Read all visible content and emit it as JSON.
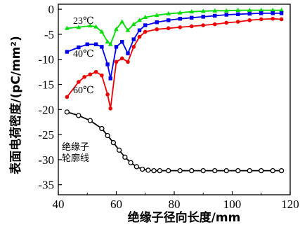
{
  "chart_data": {
    "type": "line",
    "xlabel": "绝缘子径向长度/mm",
    "ylabel": "表面电荷密度/(pC/mm²)",
    "xlim": [
      40,
      120
    ],
    "ylim": [
      -37,
      1
    ],
    "xticks": [
      40,
      60,
      80,
      100,
      120
    ],
    "yticks": [
      0,
      -5,
      -10,
      -15,
      -20,
      -25,
      -30,
      -35
    ],
    "grid": false,
    "annotations": [
      {
        "text": "23℃",
        "series": "23℃"
      },
      {
        "text": "40℃",
        "series": "40℃"
      },
      {
        "text": "60℃",
        "series": "60℃"
      },
      {
        "text_lines": [
          "绝缘子",
          "轮廓线"
        ],
        "series": "绝缘子轮廓线"
      }
    ],
    "series": [
      {
        "name": "23℃",
        "color": "#00dd00",
        "marker": "triangle",
        "x": [
          43,
          47,
          51,
          53,
          55,
          57,
          58,
          60,
          62,
          64,
          66,
          68,
          70,
          74,
          78,
          82,
          86,
          90,
          94,
          98,
          102,
          106,
          110,
          114,
          117
        ],
        "y": [
          -3.8,
          -3.6,
          -3.3,
          -3.5,
          -4.5,
          -6.5,
          -7,
          -4,
          -2.5,
          -4.2,
          -3,
          -2.2,
          -1.6,
          -1.2,
          -0.9,
          -0.7,
          -0.5,
          -0.4,
          -0.3,
          -0.3,
          -0.2,
          -0.2,
          -0.2,
          -0.2,
          -0.2
        ]
      },
      {
        "name": "40℃",
        "color": "#0000ee",
        "marker": "square",
        "x": [
          43,
          47,
          50,
          53,
          55,
          57,
          58,
          60,
          62,
          64,
          66,
          68,
          70,
          74,
          78,
          82,
          86,
          90,
          94,
          98,
          102,
          106,
          110,
          114,
          117
        ],
        "y": [
          -8.5,
          -7.6,
          -7,
          -7,
          -7.5,
          -11,
          -13.8,
          -7.5,
          -6.5,
          -8.8,
          -6,
          -4.2,
          -3.2,
          -2.6,
          -2.2,
          -1.9,
          -1.7,
          -1.5,
          -1.3,
          -1.1,
          -1,
          -0.9,
          -0.8,
          -0.8,
          -0.8
        ]
      },
      {
        "name": "60℃",
        "color": "#ee0000",
        "marker": "circle",
        "x": [
          43,
          47,
          49,
          51,
          53,
          55,
          57,
          58,
          60,
          62,
          64,
          66,
          68,
          70,
          74,
          78,
          82,
          86,
          90,
          94,
          98,
          102,
          106,
          110,
          114,
          117
        ],
        "y": [
          -17.5,
          -14.5,
          -13.5,
          -13,
          -12.5,
          -13.2,
          -17,
          -19.8,
          -10.5,
          -9.8,
          -10.5,
          -7.5,
          -5.5,
          -4.5,
          -4,
          -3.8,
          -3.6,
          -3.4,
          -3.2,
          -3,
          -2.7,
          -2.5,
          -2.2,
          -2,
          -1.9,
          -2
        ]
      },
      {
        "name": "绝缘子轮廓线",
        "color": "#000000",
        "marker": "circle-open",
        "x": [
          43,
          47,
          51,
          55,
          57,
          59,
          61,
          63,
          65,
          67,
          69,
          71,
          73,
          75,
          78,
          82,
          86,
          90,
          94,
          98,
          102,
          106,
          110,
          114,
          117
        ],
        "y": [
          -20.5,
          -21.2,
          -22.2,
          -23.8,
          -25.2,
          -26.6,
          -28.1,
          -29.5,
          -30.6,
          -31.4,
          -31.9,
          -32.1,
          -32.2,
          -32.2,
          -32.2,
          -32.2,
          -32.2,
          -32.2,
          -32.2,
          -32.2,
          -32.2,
          -32.2,
          -32.2,
          -32.2,
          -32.2
        ]
      }
    ]
  }
}
